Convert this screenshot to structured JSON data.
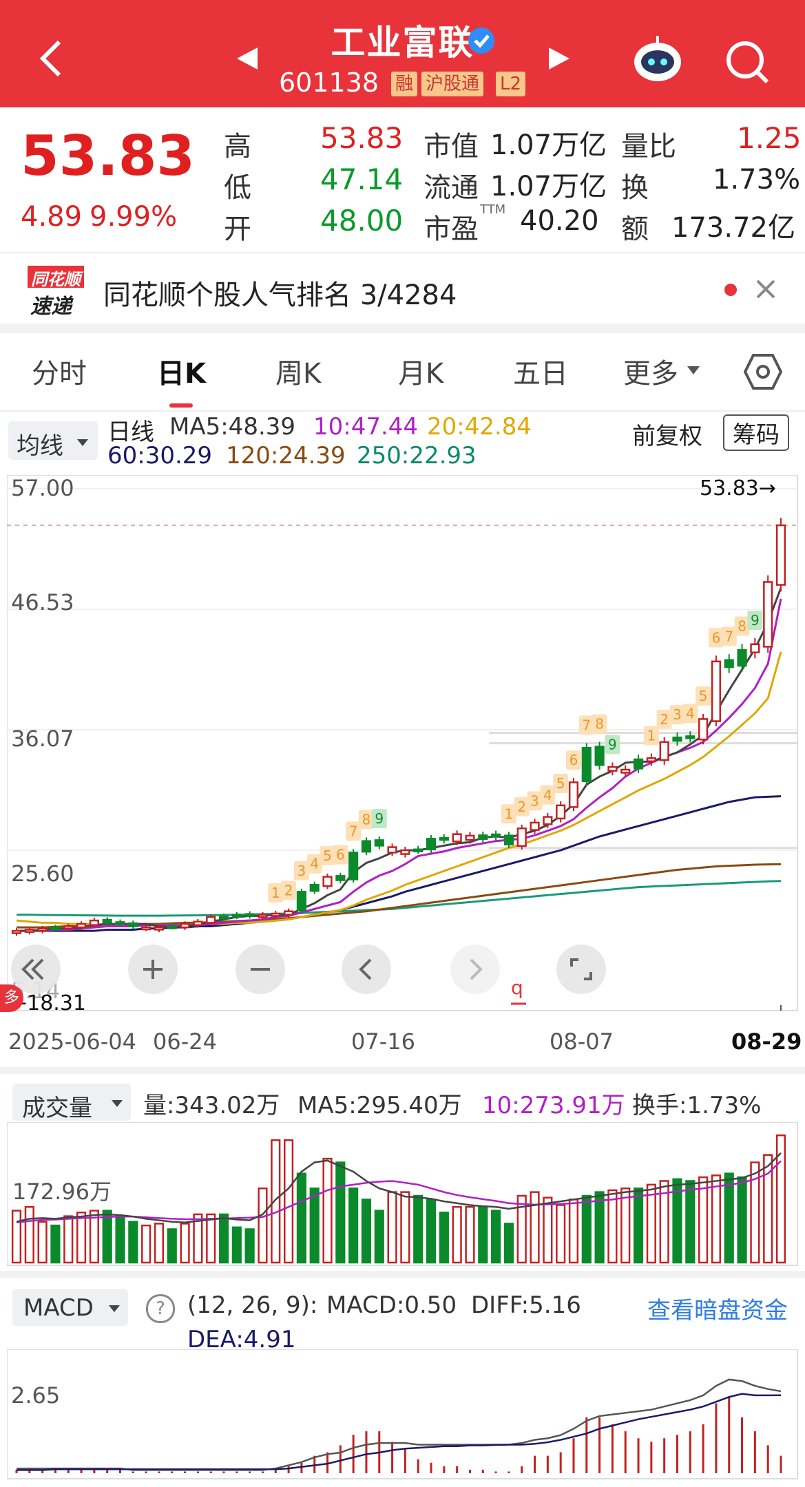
{
  "header": {
    "title": "工业富联",
    "code": "601138",
    "tags": [
      "融",
      "沪股通",
      "L2"
    ]
  },
  "quote": {
    "price": "53.83",
    "change": "4.89",
    "change_pct": "9.99%",
    "high_label": "高",
    "high": "53.83",
    "low_label": "低",
    "low": "47.14",
    "open_label": "开",
    "open": "48.00",
    "mktcap_label": "市值",
    "mktcap": "1.07万亿",
    "float_label": "流通",
    "float": "1.07万亿",
    "pe_label": "市盈",
    "pe_sup": "TTM",
    "pe": "40.20",
    "volratio_label": "量比",
    "volratio": "1.25",
    "turnover_label": "换",
    "turnover": "1.73%",
    "amount_label": "额",
    "amount": "173.72亿"
  },
  "banner": {
    "logo_top": "同花顺",
    "logo_bottom": "速递",
    "text": "同花顺个股人气排名 3/4284"
  },
  "tabs": [
    "分时",
    "日K",
    "周K",
    "月K",
    "五日",
    "更多"
  ],
  "tabs_active": "日K",
  "ma_legend": {
    "selector": "均线",
    "period": "日线",
    "ma5": "MA5:48.39",
    "ma10": "10:47.44",
    "ma20": "20:42.84",
    "ma60": "60:30.29",
    "ma120": "120:24.39",
    "ma250": "250:22.93",
    "adjust": "前复权",
    "chips": "筹码"
  },
  "price_axis": {
    "ticks": [
      "57.00",
      "46.53",
      "36.07",
      "25.60"
    ],
    "last_label": "53.83→",
    "low_label": "←18.31",
    "bottom_tick": "5.14",
    "marker": "多"
  },
  "x_axis": {
    "ticks": [
      "2025-06-04",
      "06-24",
      "07-16",
      "08-07",
      "08-29"
    ]
  },
  "volume": {
    "selector": "成交量",
    "vol": "量:343.02万",
    "ma5": "MA5:295.40万",
    "ma10": "10:273.91万",
    "turnover": "换手:1.73%",
    "axis_tick": "172.96万"
  },
  "macd": {
    "selector": "MACD",
    "params": "(12, 26, 9):",
    "macd": "MACD:0.50",
    "diff": "DIFF:5.16",
    "dea": "DEA:4.91",
    "link": "查看暗盘资金",
    "axis_tick": "2.65"
  },
  "colors": {
    "up": "#d42020",
    "down": "#0a8a2a",
    "header": "#e8333b"
  },
  "chart_data": {
    "type": "candlestick",
    "days": 60,
    "close": [
      18.6,
      18.7,
      18.8,
      18.9,
      19.0,
      19.2,
      19.5,
      19.3,
      19.2,
      19.0,
      18.8,
      18.9,
      19.0,
      19.2,
      19.4,
      19.8,
      19.8,
      20.0,
      19.9,
      20.0,
      20.1,
      20.3,
      22.0,
      22.6,
      23.3,
      23.0,
      25.4,
      26.4,
      26.0,
      25.4,
      25.6,
      25.6,
      26.6,
      26.5,
      27.0,
      26.5,
      26.9,
      26.8,
      26.1,
      27.5,
      28.0,
      28.5,
      29.5,
      31.5,
      34.5,
      33.0,
      32.5,
      32.6,
      33.5,
      33.6,
      35.0,
      35.4,
      35.4,
      37.0,
      42.0,
      41.5,
      43.0,
      43.5,
      48.9,
      53.83
    ],
    "ma5": [
      18.6,
      18.6,
      18.7,
      18.8,
      18.8,
      18.9,
      19.1,
      19.2,
      19.2,
      19.2,
      19.2,
      19.0,
      18.9,
      19.0,
      19.2,
      19.4,
      19.6,
      19.8,
      19.9,
      19.9,
      20.0,
      20.0,
      20.5,
      21.0,
      21.7,
      22.2,
      23.7,
      24.5,
      24.9,
      25.4,
      25.6,
      25.6,
      25.8,
      26.0,
      26.2,
      26.3,
      26.7,
      26.8,
      26.7,
      27.0,
      27.3,
      27.8,
      28.6,
      29.6,
      31.3,
      32.0,
      32.5,
      33.2,
      33.3,
      33.3,
      33.7,
      34.1,
      34.8,
      35.6,
      37.6,
      39.5,
      41.3,
      43.1,
      45.4,
      48.39
    ],
    "ma10": [
      18.6,
      18.6,
      18.6,
      18.7,
      18.7,
      18.8,
      18.9,
      19.0,
      19.0,
      19.0,
      19.1,
      19.1,
      19.1,
      19.1,
      19.1,
      19.2,
      19.3,
      19.4,
      19.5,
      19.6,
      19.8,
      19.9,
      20.2,
      20.5,
      20.8,
      21.1,
      22.0,
      22.8,
      23.4,
      23.8,
      24.4,
      25.1,
      25.3,
      25.5,
      25.8,
      26.0,
      26.2,
      26.4,
      26.5,
      26.6,
      26.9,
      27.3,
      27.7,
      28.3,
      29.3,
      30.2,
      31.0,
      32.0,
      32.7,
      33.2,
      33.7,
      34.1,
      34.5,
      35.0,
      36.0,
      37.1,
      38.3,
      39.7,
      41.8,
      47.44
    ],
    "ma20": [
      19.5,
      19.4,
      19.3,
      19.3,
      19.2,
      19.2,
      19.2,
      19.1,
      19.1,
      19.1,
      19.1,
      19.1,
      19.1,
      19.1,
      19.1,
      19.2,
      19.2,
      19.3,
      19.3,
      19.4,
      19.5,
      19.6,
      19.8,
      20.0,
      20.2,
      20.4,
      20.8,
      21.3,
      21.7,
      22.1,
      22.6,
      23.0,
      23.4,
      23.8,
      24.2,
      24.6,
      25.0,
      25.4,
      25.8,
      26.1,
      26.5,
      26.9,
      27.3,
      27.8,
      28.4,
      29.0,
      29.6,
      30.2,
      30.8,
      31.3,
      31.8,
      32.4,
      33.0,
      33.7,
      34.6,
      35.5,
      36.5,
      37.5,
      38.8,
      42.84
    ],
    "ma60": [
      18.6,
      18.6,
      18.6,
      18.6,
      18.6,
      18.6,
      18.6,
      18.7,
      18.7,
      18.7,
      18.8,
      18.8,
      18.9,
      18.9,
      19.0,
      19.0,
      19.1,
      19.2,
      19.3,
      19.4,
      19.5,
      19.6,
      19.8,
      20.0,
      20.2,
      20.4,
      20.7,
      21.0,
      21.3,
      21.6,
      22.0,
      22.3,
      22.6,
      22.9,
      23.2,
      23.5,
      23.8,
      24.1,
      24.4,
      24.7,
      25.0,
      25.3,
      25.6,
      26.0,
      26.4,
      26.8,
      27.1,
      27.4,
      27.7,
      28.0,
      28.3,
      28.6,
      28.9,
      29.2,
      29.5,
      29.8,
      30.0,
      30.2,
      30.25,
      30.29
    ],
    "ma120": [
      18.9,
      18.9,
      18.9,
      18.95,
      19.0,
      19.0,
      19.05,
      19.1,
      19.1,
      19.15,
      19.2,
      19.2,
      19.25,
      19.3,
      19.3,
      19.35,
      19.4,
      19.45,
      19.5,
      19.55,
      19.6,
      19.7,
      19.8,
      19.9,
      20.0,
      20.1,
      20.2,
      20.3,
      20.45,
      20.6,
      20.75,
      20.9,
      21.05,
      21.2,
      21.35,
      21.5,
      21.65,
      21.8,
      21.95,
      22.1,
      22.25,
      22.4,
      22.55,
      22.7,
      22.85,
      23.0,
      23.15,
      23.3,
      23.45,
      23.6,
      23.75,
      23.9,
      24.0,
      24.1,
      24.2,
      24.25,
      24.3,
      24.35,
      24.37,
      24.39
    ],
    "ma250": [
      20.0,
      20.0,
      19.98,
      19.97,
      19.96,
      19.95,
      19.94,
      19.93,
      19.92,
      19.92,
      19.92,
      19.92,
      19.93,
      19.94,
      19.95,
      19.96,
      19.98,
      20.0,
      20.02,
      20.05,
      20.08,
      20.1,
      20.15,
      20.2,
      20.25,
      20.3,
      20.35,
      20.4,
      20.45,
      20.5,
      20.6,
      20.7,
      20.8,
      20.9,
      21.0,
      21.1,
      21.2,
      21.3,
      21.4,
      21.5,
      21.6,
      21.7,
      21.8,
      21.9,
      22.0,
      22.1,
      22.2,
      22.3,
      22.4,
      22.45,
      22.5,
      22.55,
      22.6,
      22.65,
      22.7,
      22.75,
      22.8,
      22.85,
      22.9,
      22.93
    ],
    "volume": [
      140,
      150,
      110,
      100,
      125,
      135,
      140,
      140,
      125,
      110,
      100,
      105,
      90,
      105,
      130,
      130,
      130,
      95,
      90,
      200,
      330,
      330,
      240,
      200,
      280,
      270,
      200,
      170,
      140,
      190,
      190,
      180,
      170,
      135,
      150,
      150,
      150,
      140,
      105,
      180,
      190,
      175,
      155,
      170,
      180,
      190,
      195,
      200,
      200,
      210,
      220,
      225,
      220,
      230,
      235,
      240,
      230,
      270,
      290,
      343.02
    ],
    "volume_up": [
      true,
      true,
      true,
      false,
      true,
      true,
      true,
      false,
      false,
      false,
      true,
      true,
      false,
      true,
      true,
      true,
      false,
      false,
      false,
      true,
      true,
      true,
      false,
      false,
      true,
      false,
      false,
      false,
      false,
      true,
      true,
      false,
      false,
      false,
      true,
      true,
      false,
      false,
      false,
      true,
      true,
      true,
      true,
      true,
      false,
      false,
      true,
      true,
      false,
      true,
      true,
      false,
      false,
      true,
      true,
      false,
      false,
      true,
      true,
      true
    ],
    "vol_ma5": [
      110,
      118,
      120,
      118,
      122,
      124,
      128,
      130,
      128,
      124,
      118,
      114,
      110,
      108,
      112,
      116,
      120,
      116,
      114,
      130,
      170,
      200,
      245,
      270,
      275,
      260,
      245,
      220,
      200,
      190,
      178,
      176,
      172,
      165,
      160,
      155,
      152,
      150,
      145,
      150,
      155,
      160,
      165,
      170,
      175,
      180,
      185,
      190,
      193,
      197,
      205,
      210,
      212,
      216,
      220,
      224,
      228,
      240,
      260,
      295.4
    ],
    "vol_ma10": [
      108,
      112,
      115,
      116,
      118,
      120,
      121,
      123,
      124,
      124,
      122,
      120,
      118,
      117,
      117,
      118,
      119,
      120,
      121,
      123,
      135,
      150,
      165,
      180,
      195,
      205,
      210,
      215,
      218,
      220,
      215,
      210,
      200,
      190,
      182,
      176,
      171,
      166,
      160,
      158,
      156,
      157,
      158,
      160,
      163,
      167,
      170,
      175,
      179,
      183,
      187,
      192,
      196,
      200,
      205,
      210,
      215,
      225,
      240,
      273.91
    ],
    "macd_diff": [
      0.3,
      0.3,
      0.3,
      0.3,
      0.3,
      0.3,
      0.3,
      0.3,
      0.3,
      0.2,
      0.2,
      0.2,
      0.2,
      0.2,
      0.2,
      0.2,
      0.2,
      0.2,
      0.2,
      0.2,
      0.3,
      0.5,
      0.7,
      1.0,
      1.2,
      1.3,
      1.6,
      1.8,
      1.9,
      1.9,
      1.9,
      1.8,
      1.8,
      1.8,
      1.8,
      1.8,
      1.8,
      1.8,
      1.8,
      1.9,
      2.1,
      2.2,
      2.4,
      2.8,
      3.3,
      3.6,
      3.7,
      3.8,
      3.9,
      4.0,
      4.2,
      4.4,
      4.6,
      4.9,
      5.5,
      5.9,
      5.8,
      5.5,
      5.3,
      5.16
    ],
    "macd_dea": [
      0.2,
      0.2,
      0.2,
      0.25,
      0.25,
      0.25,
      0.25,
      0.25,
      0.25,
      0.25,
      0.25,
      0.25,
      0.25,
      0.25,
      0.25,
      0.25,
      0.25,
      0.25,
      0.25,
      0.25,
      0.25,
      0.3,
      0.4,
      0.5,
      0.6,
      0.8,
      1.0,
      1.2,
      1.3,
      1.45,
      1.55,
      1.6,
      1.65,
      1.7,
      1.7,
      1.75,
      1.75,
      1.78,
      1.8,
      1.8,
      1.85,
      1.95,
      2.1,
      2.3,
      2.5,
      2.8,
      3.0,
      3.2,
      3.4,
      3.55,
      3.7,
      3.85,
      4.0,
      4.2,
      4.5,
      4.8,
      5.0,
      4.9,
      4.9,
      4.91
    ],
    "macd_hist": [
      0.1,
      0.1,
      0.1,
      0.1,
      0.1,
      0.1,
      0.1,
      0.1,
      0.1,
      0.05,
      0.05,
      0.05,
      0.05,
      0.05,
      0.05,
      0.05,
      0.05,
      0.05,
      0.05,
      0.05,
      0.1,
      0.2,
      0.3,
      0.5,
      0.6,
      0.8,
      1.1,
      1.2,
      1.2,
      0.9,
      0.7,
      0.4,
      0.3,
      0.2,
      0.2,
      0.1,
      0.1,
      0.05,
      0.05,
      0.2,
      0.5,
      0.5,
      0.6,
      1.0,
      1.6,
      1.6,
      1.4,
      1.2,
      1.0,
      0.9,
      1.0,
      1.1,
      1.2,
      1.4,
      2.0,
      2.2,
      1.6,
      1.2,
      0.8,
      0.5
    ],
    "signals": {
      "20": "1",
      "21": "2",
      "22": "3",
      "23": "4",
      "24": "5",
      "25": "6",
      "26": "7",
      "27": "8",
      "28": "9",
      "38": "1",
      "39": "2",
      "40": "3",
      "41": "4",
      "42": "5",
      "43": "6",
      "44": "7",
      "45": "8",
      "46": "9",
      "49": "1",
      "50": "2",
      "51": "3",
      "52": "4",
      "53": "5",
      "54": "6",
      "55": "7",
      "56": "8",
      "57": "9"
    },
    "y_range": [
      15.14,
      57.0
    ]
  }
}
